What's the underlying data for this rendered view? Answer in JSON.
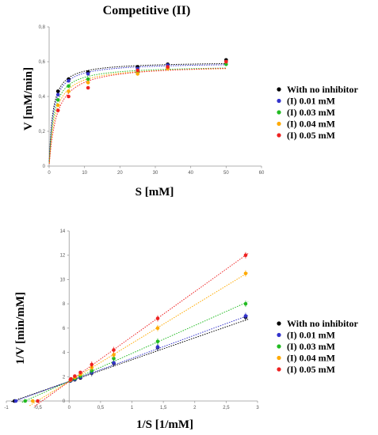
{
  "chart_data": [
    {
      "type": "scatter",
      "title": "Competitive (II)",
      "xlabel": "S [mM]",
      "ylabel": "V [mM/min]",
      "xlim": [
        0,
        60
      ],
      "ylim": [
        0,
        0.8
      ],
      "xticks": [
        "0",
        "10",
        "20",
        "30",
        "40",
        "50",
        "60"
      ],
      "yticks": [
        "0",
        "0,2",
        "0,4",
        "0,6",
        "0,8"
      ],
      "fit": "michaelis-menten",
      "legend": "right",
      "series": [
        {
          "name": "With no inhibitor",
          "color": "#000000",
          "x": [
            2.5,
            5.5,
            11,
            25,
            33.5,
            50
          ],
          "y": [
            0.43,
            0.5,
            0.54,
            0.57,
            0.585,
            0.61
          ]
        },
        {
          "name": "(I) 0.01 mM",
          "color": "#3333cc",
          "x": [
            2.5,
            5.5,
            11,
            25,
            33.5,
            50
          ],
          "y": [
            0.41,
            0.49,
            0.53,
            0.56,
            0.58,
            0.6
          ]
        },
        {
          "name": "(I) 0.03 mM",
          "color": "#22bb22",
          "x": [
            2.5,
            5.5,
            11,
            25,
            33.5,
            50
          ],
          "y": [
            0.38,
            0.46,
            0.5,
            0.54,
            0.565,
            0.585
          ]
        },
        {
          "name": "(I) 0.04 mM",
          "color": "#ffaa00",
          "x": [
            2.5,
            5.5,
            11,
            25,
            33.5,
            50
          ],
          "y": [
            0.35,
            0.43,
            0.48,
            0.53,
            0.56,
            0.6
          ]
        },
        {
          "name": "(I) 0.05 mM",
          "color": "#ee2222",
          "x": [
            2.5,
            5.5,
            11,
            25,
            33.5,
            50
          ],
          "y": [
            0.32,
            0.4,
            0.45,
            0.55,
            0.57,
            0.6
          ]
        }
      ]
    },
    {
      "type": "scatter",
      "title": "",
      "xlabel": "1/S [1/mM]",
      "ylabel": "1/V [min/mM]",
      "xlim": [
        -1,
        3
      ],
      "ylim": [
        0,
        14
      ],
      "xticks": [
        "-1",
        "-0,5",
        "0",
        "0,5",
        "1",
        "1,5",
        "2",
        "2,5",
        "3"
      ],
      "yticks": [
        "0",
        "2",
        "4",
        "6",
        "8",
        "10",
        "12",
        "14"
      ],
      "fit": "linear",
      "legend": "right",
      "series": [
        {
          "name": "With no inhibitor",
          "color": "#000000",
          "x": [
            -0.87,
            0.02,
            0.03,
            0.09,
            0.18,
            0.36,
            0.71,
            1.41,
            2.81
          ],
          "y": [
            0,
            1.65,
            1.7,
            1.75,
            1.9,
            2.3,
            3.1,
            4.4,
            6.9
          ],
          "slope": 1.8,
          "intercept": 1.6
        },
        {
          "name": "(I) 0.01 mM",
          "color": "#3333cc",
          "x": [
            -0.85,
            0.02,
            0.03,
            0.09,
            0.18,
            0.36,
            0.71,
            1.41,
            2.81
          ],
          "y": [
            0,
            1.66,
            1.7,
            1.78,
            1.95,
            2.35,
            3.15,
            4.45,
            7.0
          ],
          "slope": 1.9,
          "intercept": 1.62
        },
        {
          "name": "(I) 0.03 mM",
          "color": "#22bb22",
          "x": [
            -0.7,
            0.02,
            0.03,
            0.09,
            0.18,
            0.36,
            0.71,
            1.41,
            2.81
          ],
          "y": [
            0,
            1.7,
            1.75,
            1.85,
            2.05,
            2.5,
            3.5,
            4.9,
            8.0
          ],
          "slope": 2.3,
          "intercept": 1.62
        },
        {
          "name": "(I) 0.04 mM",
          "color": "#ffaa00",
          "x": [
            -0.58,
            0.02,
            0.03,
            0.09,
            0.18,
            0.36,
            0.71,
            1.41,
            2.81
          ],
          "y": [
            0,
            1.72,
            1.78,
            1.95,
            2.2,
            2.75,
            3.8,
            6.0,
            10.5
          ],
          "slope": 3.15,
          "intercept": 1.6
        },
        {
          "name": "(I) 0.05 mM",
          "color": "#ee2222",
          "x": [
            -0.5,
            0.02,
            0.03,
            0.09,
            0.18,
            0.36,
            0.71,
            1.41,
            2.81
          ],
          "y": [
            0,
            1.75,
            1.82,
            2.05,
            2.35,
            3.0,
            4.2,
            6.8,
            12.0
          ],
          "slope": 3.7,
          "intercept": 1.6
        }
      ]
    }
  ]
}
